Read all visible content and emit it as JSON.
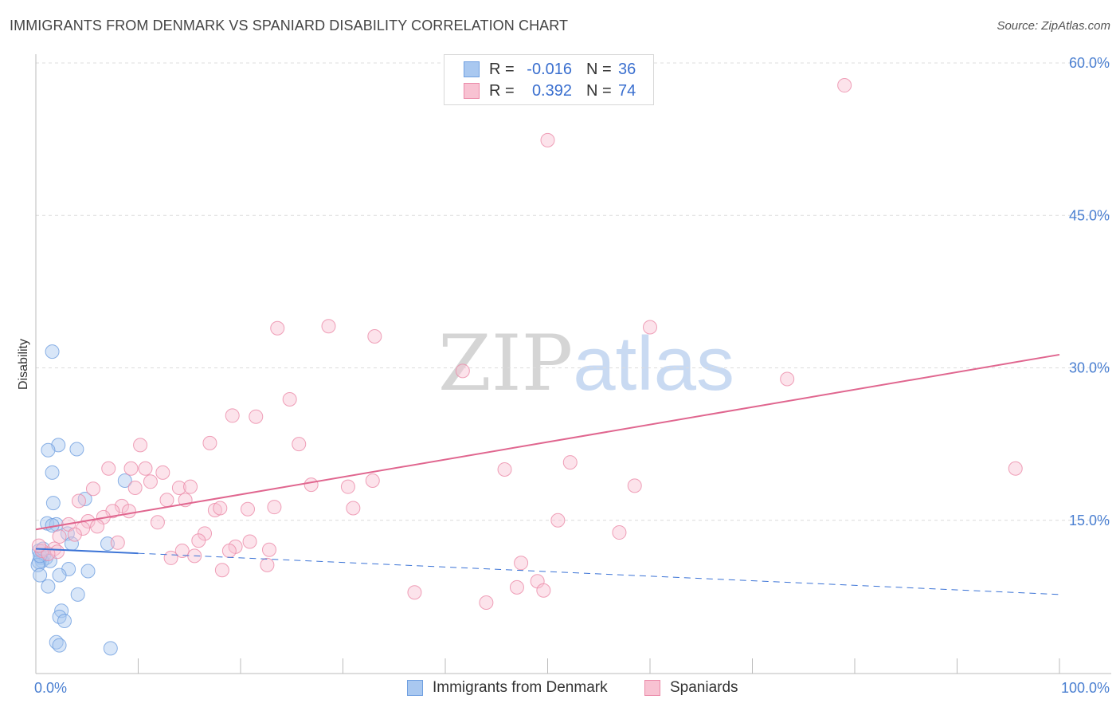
{
  "title": "IMMIGRANTS FROM DENMARK VS SPANIARD DISABILITY CORRELATION CHART",
  "source": "Source: ZipAtlas.com",
  "watermark": {
    "zip": "ZIP",
    "atlas": "atlas"
  },
  "legend": {
    "rows": [
      {
        "r_label": "R =",
        "r_value": "-0.016",
        "n_label": "N =",
        "n_value": "36",
        "color": "#a9c8f0",
        "border": "#6f9fe0"
      },
      {
        "r_label": "R =",
        "r_value": "0.392",
        "n_label": "N =",
        "n_value": "74",
        "color": "#f8c2d2",
        "border": "#eb8aa8"
      }
    ]
  },
  "bottom_legend": [
    {
      "label": "Immigrants from Denmark",
      "color": "#a9c8f0",
      "border": "#6f9fe0"
    },
    {
      "label": "Spaniards",
      "color": "#f8c2d2",
      "border": "#eb8aa8"
    }
  ],
  "chart_data": {
    "type": "scatter",
    "ylabel": "Disability",
    "xlim": [
      0,
      100
    ],
    "ylim": [
      0,
      65
    ],
    "y_ticks": [
      {
        "value": 15,
        "label": "15.0%"
      },
      {
        "value": 30,
        "label": "30.0%"
      },
      {
        "value": 45,
        "label": "45.0%"
      },
      {
        "value": 60,
        "label": "60.0%"
      }
    ],
    "x_tick_labels": [
      {
        "value": 0,
        "label": "0.0%"
      },
      {
        "value": 100,
        "label": "100.0%"
      }
    ],
    "x_minor_ticks": [
      10,
      20,
      30,
      40,
      50,
      60,
      70,
      80,
      90,
      100
    ],
    "grid": true,
    "series": [
      {
        "name": "Immigrants from Denmark",
        "color": "#6f9fe0",
        "fill": "#a9c8f0",
        "trend": {
          "x0": 0,
          "y0": 12.2,
          "x1": 100,
          "y1": 7.7,
          "solid_until": 10,
          "color": "#3b73d6"
        },
        "points": [
          [
            1.6,
            31.6
          ],
          [
            2.2,
            22.4
          ],
          [
            4.0,
            22.0
          ],
          [
            1.2,
            21.9
          ],
          [
            1.6,
            19.7
          ],
          [
            8.7,
            18.9
          ],
          [
            1.7,
            16.7
          ],
          [
            4.8,
            17.1
          ],
          [
            1.1,
            14.7
          ],
          [
            2.0,
            14.6
          ],
          [
            1.6,
            14.5
          ],
          [
            3.1,
            13.7
          ],
          [
            3.5,
            12.7
          ],
          [
            7.0,
            12.7
          ],
          [
            0.3,
            12.0
          ],
          [
            0.8,
            11.6
          ],
          [
            0.5,
            11.3
          ],
          [
            1.0,
            11.3
          ],
          [
            0.6,
            11.0
          ],
          [
            0.3,
            10.9
          ],
          [
            1.4,
            11.0
          ],
          [
            0.2,
            10.6
          ],
          [
            3.2,
            10.2
          ],
          [
            5.1,
            10.0
          ],
          [
            0.4,
            9.6
          ],
          [
            2.3,
            9.6
          ],
          [
            1.2,
            8.5
          ],
          [
            4.1,
            7.7
          ],
          [
            2.5,
            6.1
          ],
          [
            2.3,
            5.5
          ],
          [
            2.8,
            5.1
          ],
          [
            2.0,
            3.0
          ],
          [
            2.3,
            2.7
          ],
          [
            7.3,
            2.4
          ],
          [
            0.4,
            11.5
          ],
          [
            0.7,
            12.2
          ]
        ]
      },
      {
        "name": "Spaniards",
        "color": "#eb8aa8",
        "fill": "#f8c2d2",
        "trend": {
          "x0": 0,
          "y0": 14.1,
          "x1": 100,
          "y1": 31.3,
          "solid_until": 100,
          "color": "#e0668f"
        },
        "points": [
          [
            79.0,
            57.8
          ],
          [
            50.0,
            52.4
          ],
          [
            23.6,
            33.9
          ],
          [
            28.6,
            34.1
          ],
          [
            33.1,
            33.1
          ],
          [
            60.0,
            34.0
          ],
          [
            41.7,
            29.7
          ],
          [
            73.4,
            28.9
          ],
          [
            24.8,
            26.9
          ],
          [
            19.2,
            25.3
          ],
          [
            21.5,
            25.2
          ],
          [
            17.0,
            22.6
          ],
          [
            25.7,
            22.5
          ],
          [
            10.2,
            22.4
          ],
          [
            7.1,
            20.1
          ],
          [
            9.3,
            20.1
          ],
          [
            10.7,
            20.1
          ],
          [
            12.4,
            19.7
          ],
          [
            52.2,
            20.7
          ],
          [
            45.8,
            20.0
          ],
          [
            95.7,
            20.1
          ],
          [
            11.2,
            18.8
          ],
          [
            9.7,
            18.2
          ],
          [
            14.0,
            18.2
          ],
          [
            15.1,
            18.3
          ],
          [
            26.9,
            18.5
          ],
          [
            30.5,
            18.3
          ],
          [
            32.9,
            18.9
          ],
          [
            58.5,
            18.4
          ],
          [
            5.6,
            18.1
          ],
          [
            12.8,
            17.0
          ],
          [
            14.6,
            17.0
          ],
          [
            4.2,
            16.9
          ],
          [
            8.4,
            16.4
          ],
          [
            9.1,
            15.9
          ],
          [
            17.5,
            16.0
          ],
          [
            18.0,
            16.2
          ],
          [
            20.7,
            16.1
          ],
          [
            23.3,
            16.3
          ],
          [
            31.0,
            16.2
          ],
          [
            7.5,
            15.9
          ],
          [
            6.6,
            15.3
          ],
          [
            5.1,
            14.9
          ],
          [
            3.2,
            14.6
          ],
          [
            11.9,
            14.8
          ],
          [
            6.0,
            14.4
          ],
          [
            4.6,
            14.2
          ],
          [
            51.0,
            15.0
          ],
          [
            57.0,
            13.8
          ],
          [
            2.3,
            13.4
          ],
          [
            3.8,
            13.6
          ],
          [
            16.5,
            13.7
          ],
          [
            15.9,
            13.0
          ],
          [
            20.9,
            12.9
          ],
          [
            8.0,
            12.8
          ],
          [
            19.5,
            12.4
          ],
          [
            0.6,
            12.0
          ],
          [
            1.8,
            12.2
          ],
          [
            2.1,
            11.9
          ],
          [
            14.3,
            12.0
          ],
          [
            18.9,
            12.0
          ],
          [
            22.8,
            12.1
          ],
          [
            13.2,
            11.3
          ],
          [
            15.5,
            11.5
          ],
          [
            1.2,
            11.7
          ],
          [
            22.6,
            10.6
          ],
          [
            18.2,
            10.1
          ],
          [
            47.4,
            10.8
          ],
          [
            49.0,
            9.0
          ],
          [
            47.0,
            8.4
          ],
          [
            37.0,
            7.9
          ],
          [
            49.6,
            8.1
          ],
          [
            44.0,
            6.9
          ],
          [
            0.3,
            12.5
          ]
        ]
      }
    ]
  }
}
